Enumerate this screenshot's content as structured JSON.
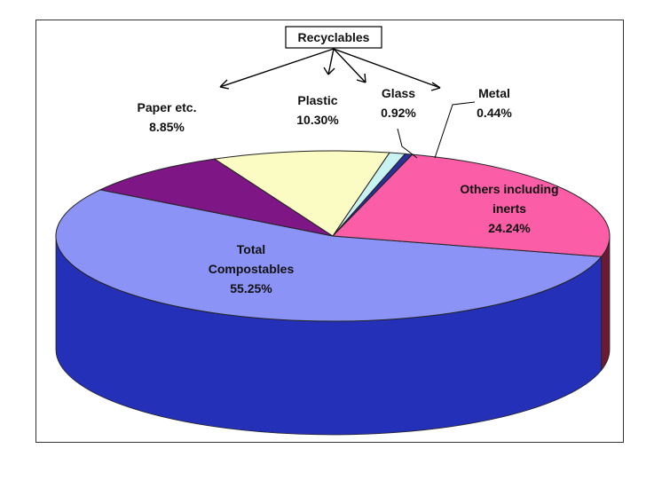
{
  "chart_data": {
    "type": "pie",
    "variant": "3d",
    "group_label": "Recyclables",
    "slices": [
      {
        "label": "Total Compostables",
        "value": 55.25,
        "value_text": "55.25%",
        "color": "#8c93f6",
        "side_color": "#2430b8"
      },
      {
        "label": "Paper etc.",
        "value": 8.85,
        "value_text": "8.85%",
        "color": "#7f1685",
        "side_color": "#4d0a52"
      },
      {
        "label": "Plastic",
        "value": 10.3,
        "value_text": "10.30%",
        "color": "#fbfbc4",
        "side_color": "#b8b88a"
      },
      {
        "label": "Glass",
        "value": 0.92,
        "value_text": "0.92%",
        "color": "#c9f3f3",
        "side_color": "#7fb0b0"
      },
      {
        "label": "Metal",
        "value": 0.44,
        "value_text": "0.44%",
        "color": "#2a2f9a",
        "side_color": "#151860"
      },
      {
        "label": "Others including inerts",
        "value": 24.24,
        "value_text": "24.24%",
        "color": "#fb5ea6",
        "side_color": "#6b1a36"
      }
    ],
    "labels": {
      "compost": [
        "Total",
        "Compostables",
        "55.25%"
      ],
      "paper": [
        "Paper etc.",
        "8.85%"
      ],
      "plastic": [
        "Plastic",
        "10.30%"
      ],
      "glass": [
        "Glass",
        "0.92%"
      ],
      "metal": [
        "Metal",
        "0.44%"
      ],
      "others": [
        "Others including",
        "inerts",
        "24.24%"
      ]
    }
  }
}
